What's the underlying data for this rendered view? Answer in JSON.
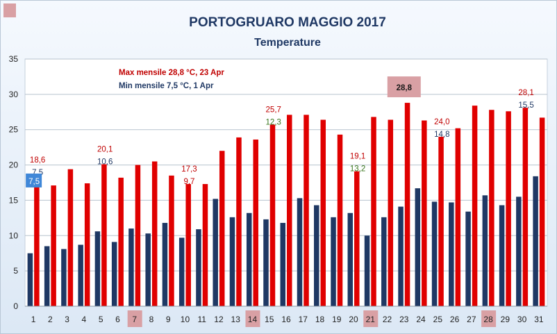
{
  "chart_data": {
    "type": "bar",
    "title": "PORTOGRUARO MAGGIO 2017",
    "subtitle": "Temperature",
    "xlabel": "",
    "ylabel": "",
    "ylim": [
      0,
      35
    ],
    "yticks": [
      "0",
      "5",
      "10",
      "15",
      "20",
      "25",
      "30",
      "35"
    ],
    "grid": true,
    "categories": [
      "1",
      "2",
      "3",
      "4",
      "5",
      "6",
      "7",
      "8",
      "9",
      "10",
      "11",
      "12",
      "13",
      "14",
      "15",
      "16",
      "17",
      "18",
      "19",
      "20",
      "21",
      "22",
      "23",
      "24",
      "25",
      "26",
      "27",
      "28",
      "29",
      "30",
      "31"
    ],
    "highlighted_categories": [
      "7",
      "14",
      "21",
      "28"
    ],
    "series": [
      {
        "key": "min",
        "color": "#1f3864",
        "values": [
          7.5,
          8.5,
          8.1,
          8.7,
          10.6,
          9.1,
          11.0,
          10.3,
          11.8,
          9.7,
          10.9,
          15.2,
          12.6,
          13.2,
          12.3,
          11.8,
          15.3,
          14.3,
          12.6,
          13.2,
          10.0,
          12.6,
          14.1,
          16.7,
          14.8,
          14.7,
          13.4,
          15.7,
          14.3,
          15.5,
          18.4
        ]
      },
      {
        "key": "max",
        "color": "#e00000",
        "values": [
          18.6,
          17.1,
          19.4,
          17.4,
          20.1,
          18.2,
          20.0,
          20.5,
          18.5,
          17.3,
          17.3,
          22.0,
          23.9,
          23.6,
          25.7,
          27.1,
          27.1,
          26.4,
          24.3,
          19.1,
          26.8,
          26.4,
          28.8,
          26.3,
          24.0,
          25.2,
          28.4,
          27.8,
          27.6,
          28.1,
          26.7
        ]
      }
    ],
    "annotations": {
      "max_text": "Max mensile 28,8 °C, 23  Apr",
      "min_text": "Min mensile 7,5 °C, 1 Apr",
      "max_box": "28,8",
      "min_box": "7,5",
      "labels": [
        {
          "day": "1",
          "max": "18,6",
          "min": "7,5",
          "min_color": "#1f3864"
        },
        {
          "day": "5",
          "max": "20,1",
          "min": "10,6",
          "min_color": "#1f3864"
        },
        {
          "day": "10",
          "max": "17,3",
          "min": "9,7",
          "min_color": "#c00000"
        },
        {
          "day": "15",
          "max": "25,7",
          "min": "12,3",
          "min_color": "#38761d"
        },
        {
          "day": "20",
          "max": "19,1",
          "min": "13,2",
          "min_color": "#38761d"
        },
        {
          "day": "25",
          "max": "24,0",
          "min": "14,8",
          "min_color": "#1f3864"
        },
        {
          "day": "30",
          "max": "28,1",
          "min": "15,5",
          "min_color": "#1f3864"
        }
      ]
    }
  }
}
